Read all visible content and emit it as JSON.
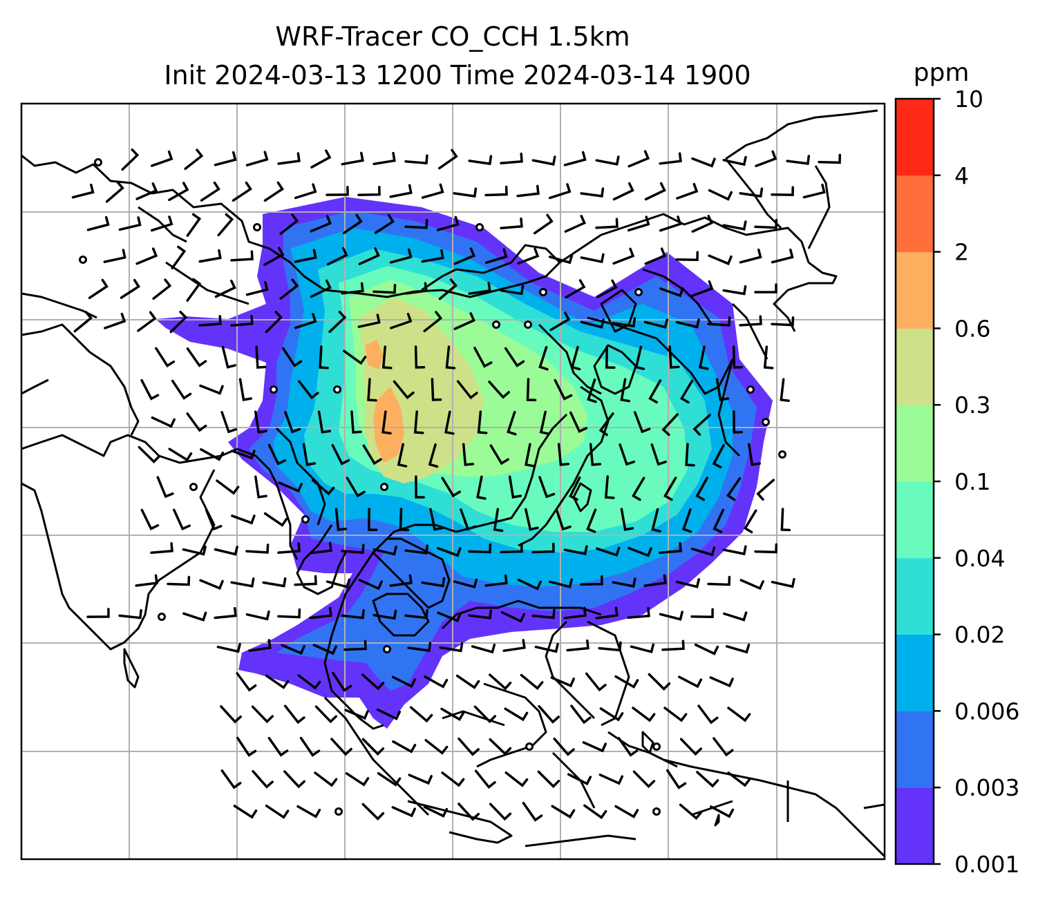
{
  "title": {
    "line1": "WRF-Tracer CO_CCH 1.5km",
    "line2": "Init 2024-03-13 1200 Time 2024-03-14 1900"
  },
  "colorbar": {
    "unit": "ppm",
    "levels": [
      "0.001",
      "0.003",
      "0.006",
      "0.02",
      "0.04",
      "0.1",
      "0.3",
      "0.6",
      "2",
      "4",
      "10"
    ],
    "colors": [
      "#6433fa",
      "#3174f3",
      "#00b0ec",
      "#2fdfd6",
      "#68fbbd",
      "#9bfb97",
      "#cfe188",
      "#fdaf60",
      "#fe6f3c",
      "#fd2a18"
    ]
  },
  "map": {
    "projection": "lambert-like regional grid",
    "gridlines": true,
    "coastlines": true,
    "country_borders": true,
    "wind_barbs": true,
    "calm_wind_circles": true,
    "plume_levels_present": [
      "0.001",
      "0.003",
      "0.006",
      "0.02",
      "0.04",
      "0.1",
      "0.3",
      "0.6"
    ]
  }
}
